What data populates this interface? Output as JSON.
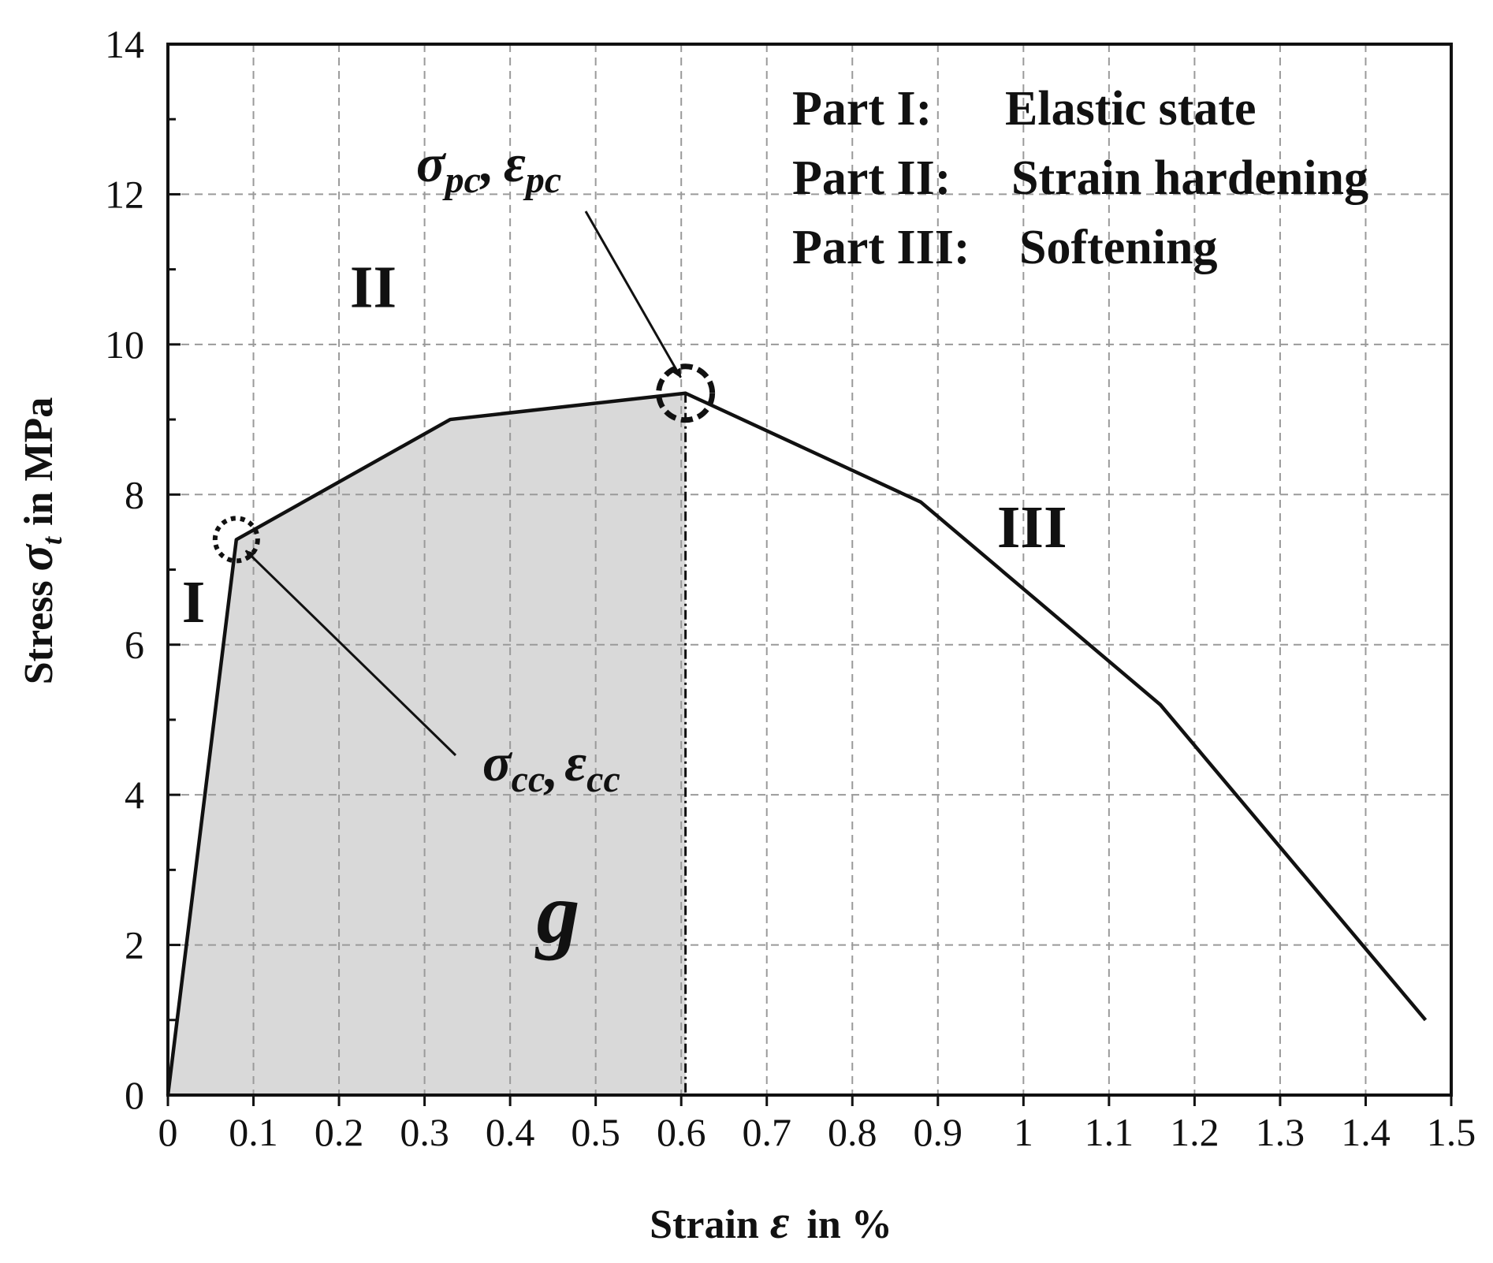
{
  "chart_data": {
    "type": "line",
    "xlabel_text": "Strain",
    "xlabel_symbol": "ε",
    "xlabel_unit": "in %",
    "ylabel_text": "Stress",
    "ylabel_symbol": "σ",
    "ylabel_subscript": "t",
    "ylabel_unit": "in MPa",
    "xlim": [
      0,
      1.5
    ],
    "ylim": [
      0,
      14
    ],
    "x_ticks": [
      0,
      0.1,
      0.2,
      0.3,
      0.4,
      0.5,
      0.6,
      0.7,
      0.8,
      0.9,
      1,
      1.1,
      1.2,
      1.3,
      1.4,
      1.5
    ],
    "x_tick_labels": [
      "0",
      "0.1",
      "0.2",
      "0.3",
      "0.4",
      "0.5",
      "0.6",
      "0.7",
      "0.8",
      "0.9",
      "1",
      "1.1",
      "1.2",
      "1.3",
      "1.4",
      "1.5"
    ],
    "y_ticks": [
      0,
      2,
      4,
      6,
      8,
      10,
      12,
      14
    ],
    "y_tick_labels": [
      "0",
      "2",
      "4",
      "6",
      "8",
      "10",
      "12",
      "14"
    ],
    "y_minor_step": 1,
    "grid": true,
    "series": [
      {
        "x": [
          0,
          0.08,
          0.33,
          0.605,
          0.88,
          1.16,
          1.47
        ],
        "y": [
          0,
          7.4,
          9.0,
          9.35,
          7.9,
          5.2,
          1.0
        ]
      }
    ],
    "shaded_region": {
      "x_from": 0,
      "x_to": 0.605,
      "label": "g"
    },
    "peak_dropline_x": 0.605,
    "points": [
      {
        "x": 0.08,
        "y": 7.4,
        "sigma": "σ",
        "sigma_sub": "cc",
        "sep": ",",
        "eps": "ε",
        "eps_sub": "cc"
      },
      {
        "x": 0.605,
        "y": 9.35,
        "sigma": "σ",
        "sigma_sub": "pc",
        "sep": ",",
        "eps": "ε",
        "eps_sub": "pc"
      }
    ],
    "region_labels": [
      {
        "text": "I",
        "x": 0.03,
        "y": 6.3
      },
      {
        "text": "II",
        "x": 0.24,
        "y": 10.5
      },
      {
        "text": "III",
        "x": 1.01,
        "y": 7.3
      }
    ],
    "legend_entries": [
      {
        "part": "Part I:",
        "desc": "Elastic state"
      },
      {
        "part": "Part II:",
        "desc": "Strain hardening"
      },
      {
        "part": "Part III:",
        "desc": "Softening"
      }
    ],
    "legend_position": "top-right"
  }
}
